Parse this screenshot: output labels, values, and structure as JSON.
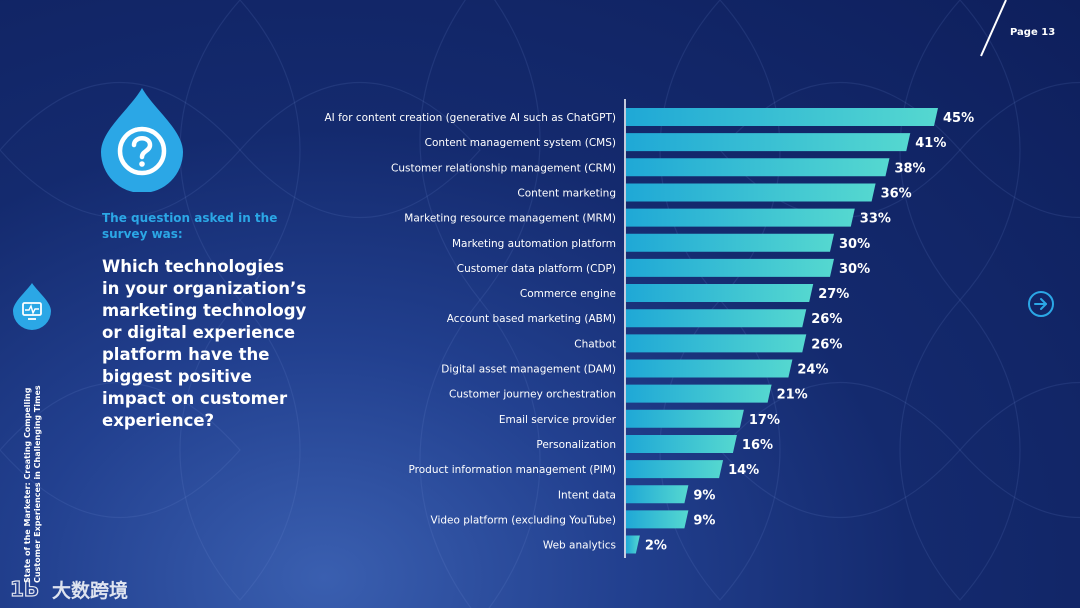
{
  "page": {
    "number_label": "Page 13"
  },
  "sidebar": {
    "vertical_title_line1": "State of the Marketer: Creating Compelling",
    "vertical_title_line2": "Customer Experiences in Challenging Times"
  },
  "question": {
    "intro": "The question asked in the survey was:",
    "text": "Which technologies in your organization’s marketing technology or digital experience platform have the biggest positive impact on customer experience?"
  },
  "watermark": {
    "text": "大数跨境"
  },
  "icons": {
    "drop": "question-mark-icon",
    "side": "monitor-icon",
    "next": "arrow-right-circle-icon"
  },
  "colors": {
    "bar_start": "#1fa8d6",
    "bar_end": "#55d8d0",
    "accent": "#2ba7e6",
    "question_label": "#2ba7e6"
  },
  "chart_data": {
    "type": "bar",
    "orientation": "horizontal",
    "categories": [
      "AI for content creation (generative AI such as ChatGPT)",
      "Content management system (CMS)",
      "Customer relationship management (CRM)",
      "Content marketing",
      "Marketing resource management (MRM)",
      "Marketing automation platform",
      "Customer data platform (CDP)",
      "Commerce engine",
      "Account based marketing (ABM)",
      "Chatbot",
      "Digital asset management (DAM)",
      "Customer journey orchestration",
      "Email service provider",
      "Personalization",
      "Product information management (PIM)",
      "Intent data",
      "Video platform (excluding YouTube)",
      "Web analytics"
    ],
    "values": [
      45,
      41,
      38,
      36,
      33,
      30,
      30,
      27,
      26,
      26,
      24,
      21,
      17,
      16,
      14,
      9,
      9,
      2
    ],
    "value_labels": [
      "45%",
      "41%",
      "38%",
      "36%",
      "33%",
      "30%",
      "30%",
      "27%",
      "26%",
      "26%",
      "24%",
      "21%",
      "17%",
      "16%",
      "14%",
      "9%",
      "9%",
      "2%"
    ],
    "unit": "%",
    "xlim": [
      0,
      45
    ],
    "title": "",
    "xlabel": "",
    "ylabel": ""
  }
}
